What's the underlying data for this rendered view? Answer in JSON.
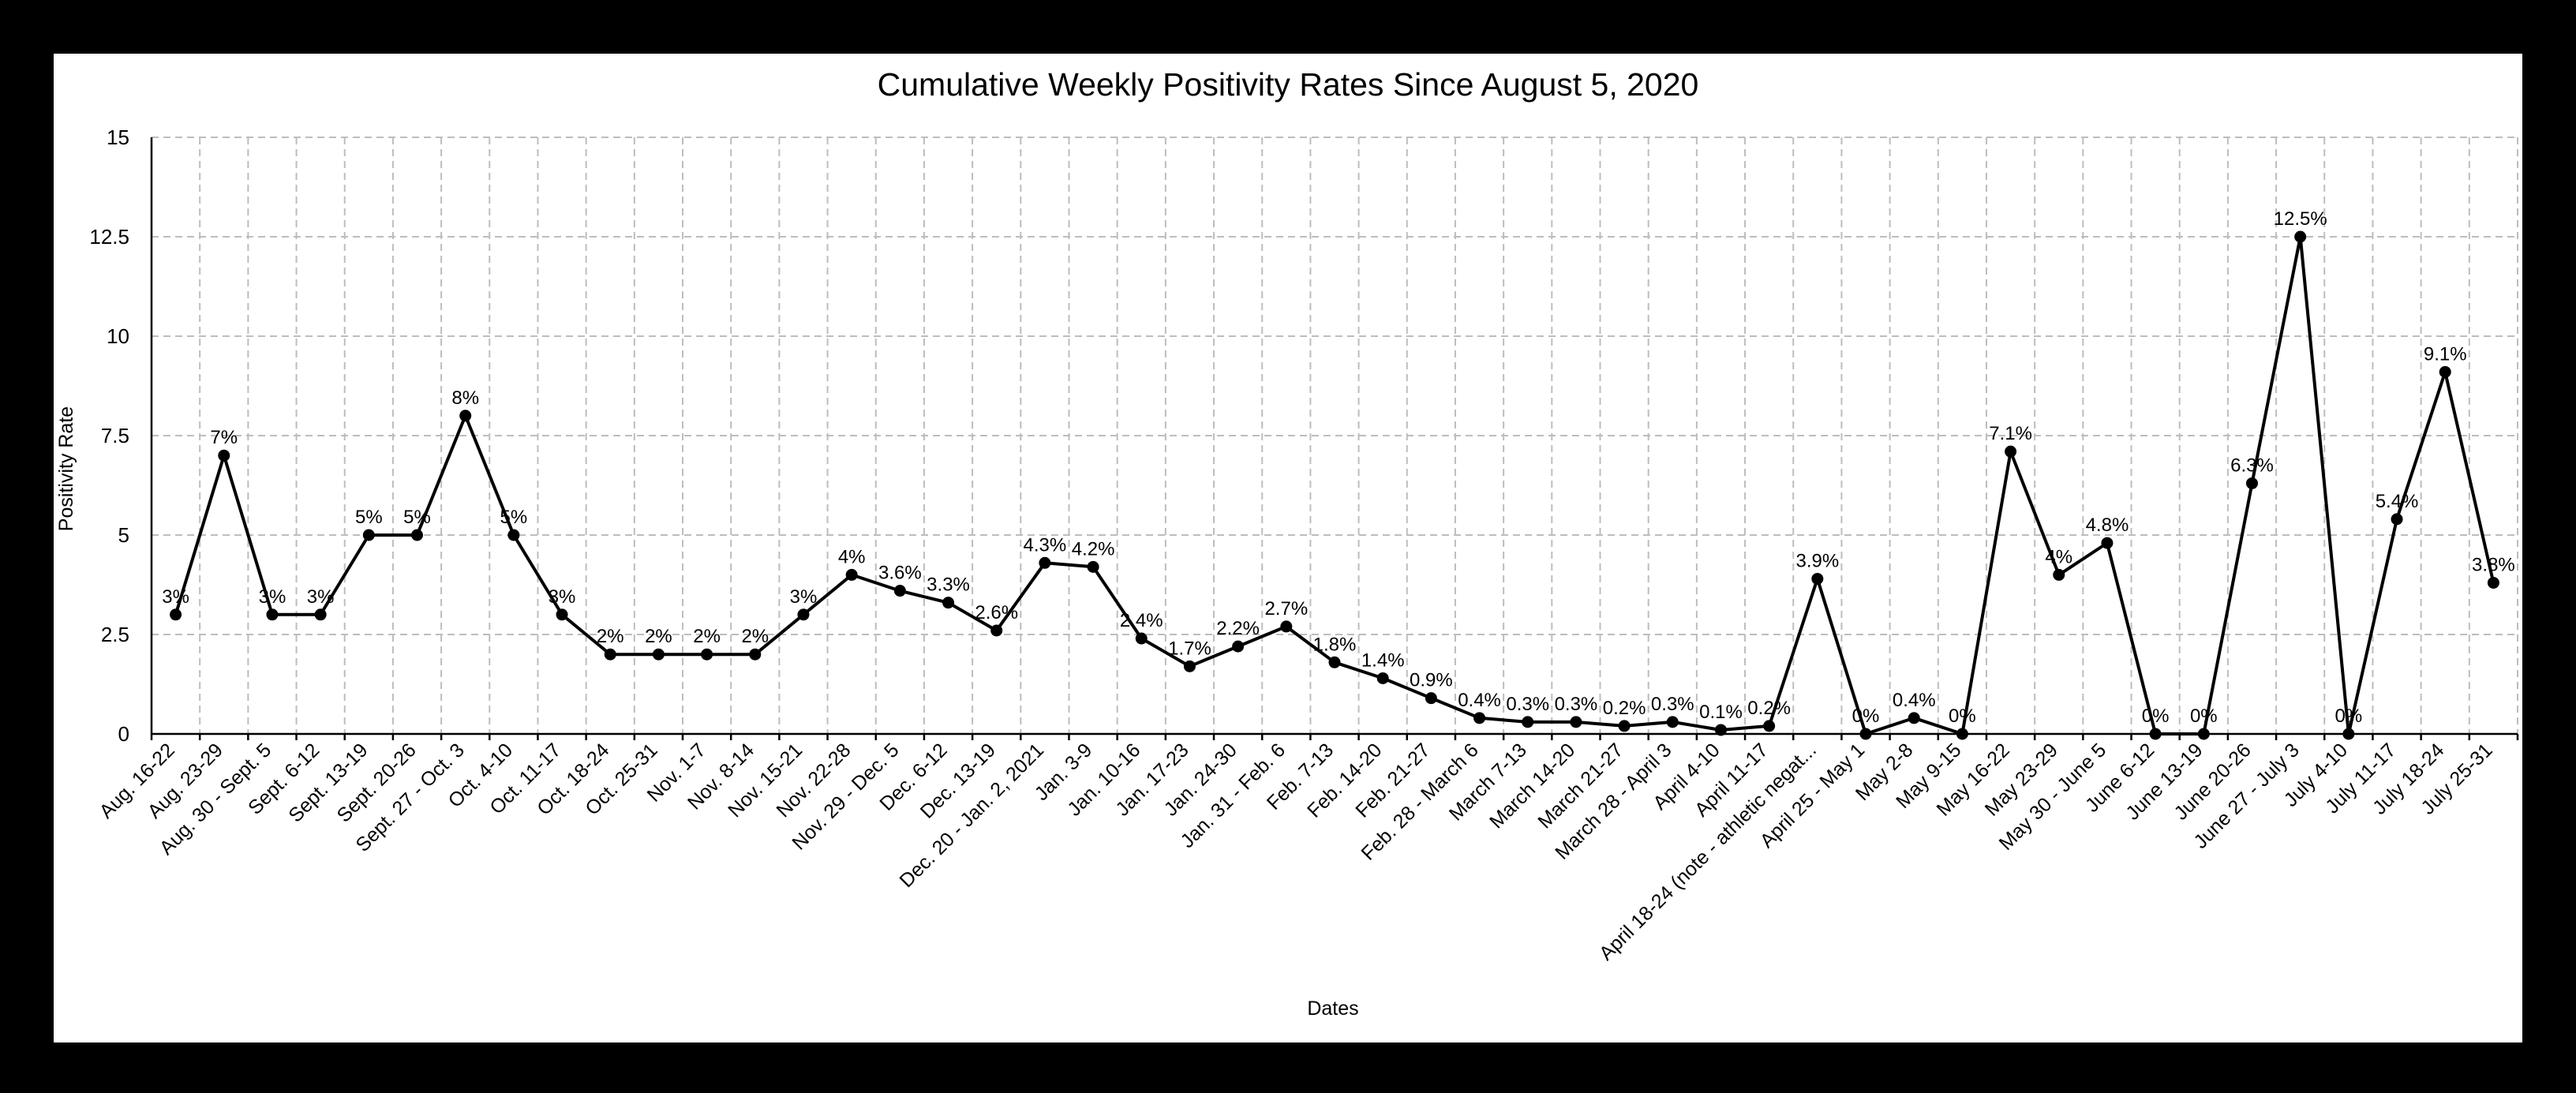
{
  "chart_data": {
    "type": "line",
    "title": "Cumulative Weekly Positivity Rates Since August 5, 2020",
    "xlabel": "Dates",
    "ylabel": "Positivity Rate",
    "ylim": [
      0,
      15
    ],
    "yticks": [
      "0",
      "2.5",
      "5",
      "7.5",
      "10",
      "12.5",
      "15"
    ],
    "ytick_values": [
      0,
      2.5,
      5,
      7.5,
      10,
      12.5,
      15
    ],
    "grid": true,
    "legend": "none",
    "color": "#000000",
    "categories": [
      "Aug. 16-22",
      "Aug. 23-29",
      "Aug. 30 - Sept. 5",
      "Sept. 6-12",
      "Sept. 13-19",
      "Sept. 20-26",
      "Sept. 27 - Oct. 3",
      "Oct. 4-10",
      "Oct. 11-17",
      "Oct. 18-24",
      "Oct. 25-31",
      "Nov. 1-7",
      "Nov. 8-14",
      "Nov. 15-21",
      "Nov. 22-28",
      "Nov. 29 - Dec. 5",
      "Dec. 6-12",
      "Dec. 13-19",
      "Dec. 20 - Jan. 2, 2021",
      "Jan. 3-9",
      "Jan. 10-16",
      "Jan. 17-23",
      "Jan. 24-30",
      "Jan. 31 - Feb. 6",
      "Feb. 7-13",
      "Feb. 14-20",
      "Feb. 21-27",
      "Feb. 28 - March 6",
      "March 7-13",
      "March 14-20",
      "March 21-27",
      "March 28 - April 3",
      "April 4-10",
      "April 11-17",
      "April 18-24 (note - athletic negat...",
      "April 25 - May 1",
      "May 2-8",
      "May 9-15",
      "May 16-22",
      "May 23-29",
      "May 30 - June 5",
      "June 6-12",
      "June 13-19",
      "June 20-26",
      "June 27 - July 3",
      "July 4-10",
      "July 11-17",
      "July 18-24",
      "July 25-31"
    ],
    "values": [
      3,
      7,
      3,
      3,
      5,
      5,
      8,
      5,
      3,
      2,
      2,
      2,
      2,
      3,
      4,
      3.6,
      3.3,
      2.6,
      4.3,
      4.2,
      2.4,
      1.7,
      2.2,
      2.7,
      1.8,
      1.4,
      0.9,
      0.4,
      0.3,
      0.3,
      0.2,
      0.3,
      0.1,
      0.2,
      3.9,
      0,
      0.4,
      0,
      7.1,
      4,
      4.8,
      0,
      0,
      6.3,
      12.5,
      0,
      5.4,
      9.1,
      3.8
    ],
    "data_labels": [
      "3%",
      "7%",
      "3%",
      "3%",
      "5%",
      "5%",
      "8%",
      "5%",
      "3%",
      "2%",
      "2%",
      "2%",
      "2%",
      "3%",
      "4%",
      "3.6%",
      "3.3%",
      "2.6%",
      "4.3%",
      "4.2%",
      "2.4%",
      "1.7%",
      "2.2%",
      "2.7%",
      "1.8%",
      "1.4%",
      "0.9%",
      "0.4%",
      "0.3%",
      "0.3%",
      "0.2%",
      "0.3%",
      "0.1%",
      "0.2%",
      "3.9%",
      "0%",
      "0.4%",
      "0%",
      "7.1%",
      "4%",
      "4.8%",
      "0%",
      "0%",
      "6.3%",
      "12.5%",
      "0%",
      "5.4%",
      "9.1%",
      "3.8%"
    ]
  }
}
